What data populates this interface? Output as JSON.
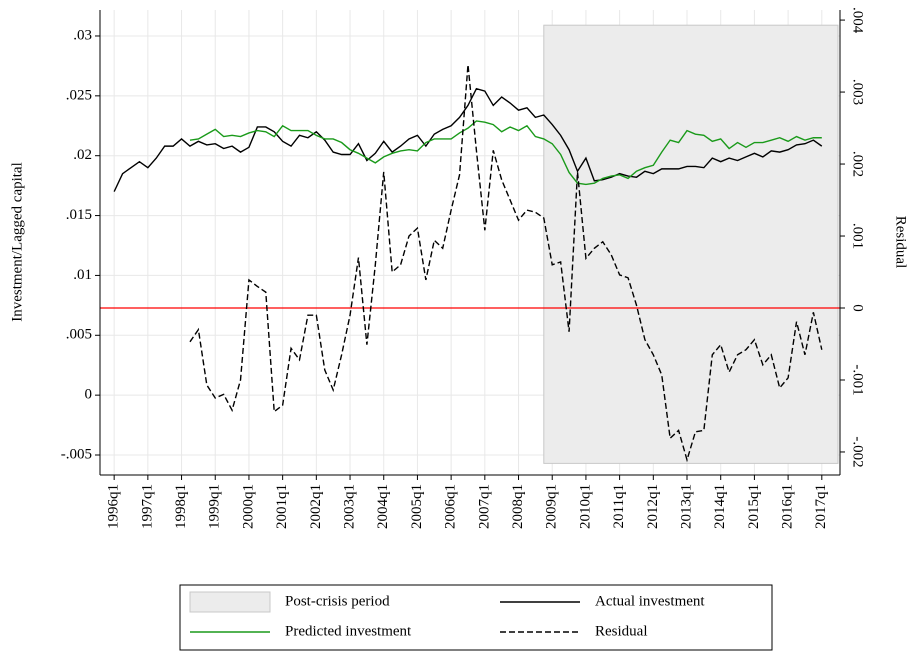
{
  "chart_data": {
    "type": "line",
    "y_label": "Investment/Lagged capital",
    "y2_label": "Residual",
    "x": [
      1996,
      1996.25,
      1996.5,
      1996.75,
      1997,
      1997.25,
      1997.5,
      1997.75,
      1998,
      1998.25,
      1998.5,
      1998.75,
      1999,
      1999.25,
      1999.5,
      1999.75,
      2000,
      2000.25,
      2000.5,
      2000.75,
      2001,
      2001.25,
      2001.5,
      2001.75,
      2002,
      2002.25,
      2002.5,
      2002.75,
      2003,
      2003.25,
      2003.5,
      2003.75,
      2004,
      2004.25,
      2004.5,
      2004.75,
      2005,
      2005.25,
      2005.5,
      2005.75,
      2006,
      2006.25,
      2006.5,
      2006.75,
      2007,
      2007.25,
      2007.5,
      2007.75,
      2008,
      2008.25,
      2008.5,
      2008.75,
      2009,
      2009.25,
      2009.5,
      2009.75,
      2010,
      2010.25,
      2010.5,
      2010.75,
      2011,
      2011.25,
      2011.5,
      2011.75,
      2012,
      2012.25,
      2012.5,
      2012.75,
      2013,
      2013.25,
      2013.5,
      2013.75,
      2014,
      2014.25,
      2014.5,
      2014.75,
      2015,
      2015.25,
      2015.5,
      2015.75,
      2016,
      2016.25,
      2016.5,
      2016.75,
      2017
    ],
    "series": [
      {
        "name": "Actual investment",
        "color": "#000000",
        "dash": false,
        "axis": "y",
        "values": [
          0.017,
          0.0185,
          0.019,
          0.0195,
          0.019,
          0.0198,
          0.0208,
          0.0208,
          0.0214,
          0.0208,
          0.0212,
          0.0209,
          0.021,
          0.0206,
          0.0208,
          0.0203,
          0.0207,
          0.0224,
          0.0224,
          0.022,
          0.0212,
          0.0208,
          0.0217,
          0.0215,
          0.022,
          0.0213,
          0.0203,
          0.0201,
          0.0201,
          0.021,
          0.0196,
          0.0202,
          0.0212,
          0.0203,
          0.0208,
          0.0214,
          0.0217,
          0.0208,
          0.0218,
          0.0222,
          0.0225,
          0.0232,
          0.0242,
          0.0256,
          0.0254,
          0.0242,
          0.0249,
          0.0244,
          0.0238,
          0.024,
          0.0232,
          0.0234,
          0.0226,
          0.0217,
          0.0205,
          0.0187,
          0.0198,
          0.0179,
          0.018,
          0.0182,
          0.0185,
          0.0183,
          0.0182,
          0.0187,
          0.0185,
          0.0189,
          0.0189,
          0.0189,
          0.0191,
          0.0191,
          0.019,
          0.0198,
          0.0195,
          0.0198,
          0.0196,
          0.0199,
          0.0202,
          0.0199,
          0.0204,
          0.0203,
          0.0205,
          0.0209,
          0.021,
          0.0213,
          0.0208
        ]
      },
      {
        "name": "Predicted investment",
        "color": "#1a9a1a",
        "dash": false,
        "axis": "y",
        "values": [
          null,
          null,
          null,
          null,
          null,
          null,
          null,
          null,
          null,
          0.0213,
          0.0214,
          0.0218,
          0.0222,
          0.0216,
          0.0217,
          0.0216,
          0.0219,
          0.0221,
          0.022,
          0.0216,
          0.0225,
          0.0221,
          0.0221,
          0.0221,
          0.0217,
          0.0214,
          0.0214,
          0.0211,
          0.0205,
          0.0202,
          0.0198,
          0.0194,
          0.0199,
          0.0202,
          0.0204,
          0.0205,
          0.0204,
          0.0211,
          0.0214,
          0.0214,
          0.0214,
          0.0219,
          0.0223,
          0.0229,
          0.0228,
          0.0226,
          0.022,
          0.0224,
          0.0221,
          0.0225,
          0.0216,
          0.0214,
          0.021,
          0.0201,
          0.0186,
          0.0177,
          0.0176,
          0.0177,
          0.0181,
          0.0183,
          0.0184,
          0.0181,
          0.0187,
          0.019,
          0.0192,
          0.0203,
          0.0213,
          0.0211,
          0.0221,
          0.0218,
          0.0217,
          0.0212,
          0.0214,
          0.0206,
          0.0211,
          0.0207,
          0.0211,
          0.0211,
          0.0213,
          0.0215,
          0.0212,
          0.0216,
          0.0213,
          0.0215,
          0.0215
        ]
      },
      {
        "name": "Residual",
        "color": "#000000",
        "dash": true,
        "axis": "y2",
        "values": [
          null,
          null,
          null,
          null,
          null,
          null,
          null,
          null,
          null,
          -0.00047,
          -0.0003,
          -0.00107,
          -0.00125,
          -0.0012,
          -0.00142,
          -0.001,
          0.00039,
          0.0003,
          0.00022,
          -0.00144,
          -0.00135,
          -0.00056,
          -0.00072,
          -0.0001,
          -0.0001,
          -0.00086,
          -0.00114,
          -0.00065,
          -0.0001,
          0.0007,
          -0.00051,
          0.0006,
          0.00189,
          0.0005,
          0.0006,
          0.001,
          0.00111,
          0.00039,
          0.00094,
          0.00083,
          0.00136,
          0.00185,
          0.00338,
          0.00219,
          0.00108,
          0.00219,
          0.00178,
          0.0015,
          0.00122,
          0.00136,
          0.00133,
          0.00125,
          0.0006,
          0.00064,
          -0.00033,
          0.00189,
          0.00069,
          0.00083,
          0.00092,
          0.00074,
          0.00046,
          0.00042,
          4e-05,
          -0.00044,
          -0.00065,
          -0.00093,
          -0.00181,
          -0.0017,
          -0.00211,
          -0.00172,
          -0.0017,
          -0.00065,
          -0.00051,
          -0.00089,
          -0.00065,
          -0.00058,
          -0.00044,
          -0.00079,
          -0.00065,
          -0.00111,
          -0.00097,
          -0.00019,
          -0.00065,
          -6e-05,
          -0.00058
        ]
      }
    ],
    "shade": {
      "name": "Post-crisis period",
      "color": "#ececec",
      "x": [
        2008.75,
        2017.48
      ],
      "y": [
        -0.0057,
        0.0309
      ]
    },
    "reference_line": {
      "axis": "y2",
      "value": 0,
      "color": "#ff0000"
    },
    "xlim": [
      1995.58,
      2017.54
    ],
    "xticks": [
      {
        "value": 1996,
        "label": "1996q1"
      },
      {
        "value": 1997,
        "label": "1997q1"
      },
      {
        "value": 1998,
        "label": "1998q1"
      },
      {
        "value": 1999,
        "label": "1999q1"
      },
      {
        "value": 2000,
        "label": "2000q1"
      },
      {
        "value": 2001,
        "label": "2001q1"
      },
      {
        "value": 2002,
        "label": "2002q1"
      },
      {
        "value": 2003,
        "label": "2003q1"
      },
      {
        "value": 2004,
        "label": "2004q1"
      },
      {
        "value": 2005,
        "label": "2005q1"
      },
      {
        "value": 2006,
        "label": "2006q1"
      },
      {
        "value": 2007,
        "label": "2007q1"
      },
      {
        "value": 2008,
        "label": "2008q1"
      },
      {
        "value": 2009,
        "label": "2009q1"
      },
      {
        "value": 2010,
        "label": "2010q1"
      },
      {
        "value": 2011,
        "label": "2011q1"
      },
      {
        "value": 2012,
        "label": "2012q1"
      },
      {
        "value": 2013,
        "label": "2013q1"
      },
      {
        "value": 2014,
        "label": "2014q1"
      },
      {
        "value": 2015,
        "label": "2015q1"
      },
      {
        "value": 2016,
        "label": "2016q1"
      },
      {
        "value": 2017,
        "label": "2017q1"
      }
    ],
    "ylim": [
      -0.00667,
      0.03217
    ],
    "yticks": [
      {
        "value": -0.005,
        "label": "-.005"
      },
      0,
      {
        "value": 0.005,
        "label": ".005"
      },
      {
        "value": 0.01,
        "label": ".01"
      },
      {
        "value": 0.015,
        "label": ".015"
      },
      {
        "value": 0.02,
        "label": ".02"
      },
      {
        "value": 0.025,
        "label": ".025"
      },
      {
        "value": 0.03,
        "label": ".03"
      }
    ],
    "y2lim": [
      -0.00232,
      0.00414
    ],
    "y2ticks": [
      {
        "value": -0.002,
        "label": "-.002"
      },
      {
        "value": -0.001,
        "label": "-.001"
      },
      0,
      {
        "value": 0.001,
        "label": ".001"
      },
      {
        "value": 0.002,
        "label": ".002"
      },
      {
        "value": 0.003,
        "label": ".003"
      },
      {
        "value": 0.004,
        "label": ".004"
      }
    ],
    "grid": true
  }
}
